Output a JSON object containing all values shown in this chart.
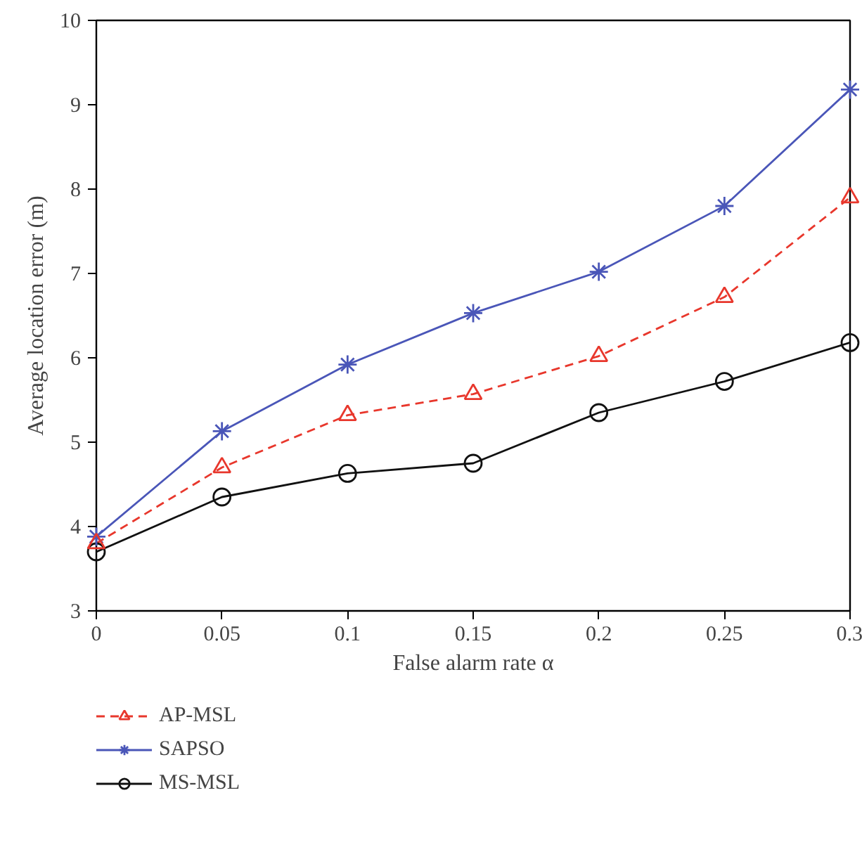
{
  "chart_data": {
    "type": "line",
    "xlabel": "False alarm rate α",
    "ylabel": "Average location error (m)",
    "x": [
      0,
      0.05,
      0.1,
      0.15,
      0.2,
      0.25,
      0.3
    ],
    "xlim": [
      0,
      0.3
    ],
    "xticks": [
      0,
      0.05,
      0.1,
      0.15,
      0.2,
      0.25,
      0.3
    ],
    "ylim": [
      3,
      10
    ],
    "yticks": [
      3,
      4,
      5,
      6,
      7,
      8,
      9,
      10
    ],
    "grid": false,
    "legend": "bottom left",
    "series": [
      {
        "name": "AP-MSL",
        "color": "#e8372c",
        "marker": "triangle",
        "line_style": "dashed",
        "values": [
          3.8,
          4.7,
          5.32,
          5.57,
          6.02,
          6.72,
          7.9
        ]
      },
      {
        "name": "SAPSO",
        "color": "#4a56b8",
        "marker": "cross",
        "line_style": "solid",
        "values": [
          3.88,
          5.13,
          5.92,
          6.53,
          7.02,
          7.8,
          9.18
        ]
      },
      {
        "name": "MS-MSL",
        "color": "#111111",
        "marker": "circle",
        "line_style": "solid",
        "values": [
          3.7,
          4.35,
          4.63,
          4.75,
          5.35,
          5.72,
          6.18
        ]
      }
    ]
  }
}
